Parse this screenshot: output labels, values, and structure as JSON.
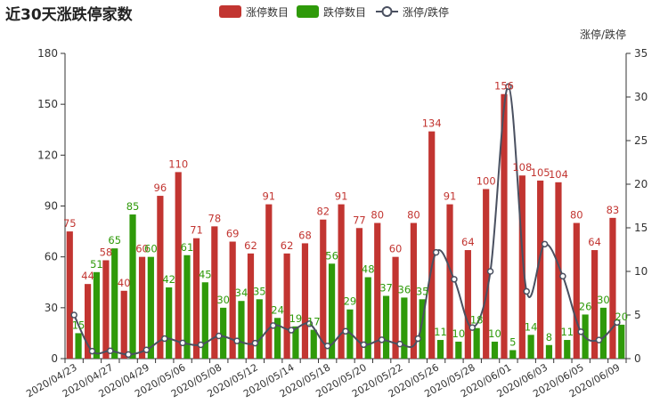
{
  "chart_data": {
    "type": "bar",
    "title": "近30天涨跌停家数",
    "y2label": "涨停/跌停",
    "ylim": [
      0,
      180
    ],
    "yticks": [
      0,
      30,
      60,
      90,
      120,
      150,
      180
    ],
    "y2lim": [
      0,
      35
    ],
    "y2ticks": [
      0,
      5,
      10,
      15,
      20,
      25,
      30,
      35
    ],
    "grid": false,
    "legend_position": "top-center",
    "colors": {
      "limit_up": "#c23531",
      "limit_down": "#2f9a0a",
      "ratio": "#4a5060"
    },
    "x_tick_labels": [
      "2020/04/23",
      "2020/04/27",
      "2020/04/29",
      "2020/05/06",
      "2020/05/08",
      "2020/05/12",
      "2020/05/14",
      "2020/05/18",
      "2020/05/20",
      "2020/05/22",
      "2020/05/26",
      "2020/05/28",
      "2020/06/01",
      "2020/06/03",
      "2020/06/05",
      "2020/06/09"
    ],
    "x_tick_every": 2,
    "series": [
      {
        "name": "涨停数目",
        "type": "bar",
        "axis": "left",
        "values": [
          75,
          44,
          58,
          40,
          60,
          96,
          110,
          71,
          78,
          69,
          62,
          91,
          62,
          68,
          82,
          91,
          77,
          80,
          60,
          80,
          134,
          91,
          64,
          100,
          156,
          108,
          105,
          104,
          80,
          64,
          83
        ]
      },
      {
        "name": "跌停数目",
        "type": "bar",
        "axis": "left",
        "values": [
          15,
          51,
          65,
          85,
          60,
          42,
          61,
          45,
          30,
          34,
          35,
          24,
          19,
          17,
          56,
          29,
          48,
          37,
          36,
          35,
          11,
          10,
          18,
          10,
          5,
          14,
          8,
          11,
          26,
          30,
          20
        ]
      },
      {
        "name": "涨停/跌停",
        "type": "line",
        "axis": "right",
        "smooth": true,
        "values": [
          5,
          0.86,
          0.89,
          0.47,
          1,
          2.29,
          1.8,
          1.58,
          2.6,
          2.03,
          1.77,
          3.79,
          3.26,
          4,
          1.46,
          3.14,
          1.6,
          2.16,
          1.67,
          2.29,
          12.18,
          9.1,
          3.56,
          10,
          31.2,
          7.71,
          13.13,
          9.45,
          3.08,
          2.13,
          4.15
        ]
      }
    ]
  }
}
